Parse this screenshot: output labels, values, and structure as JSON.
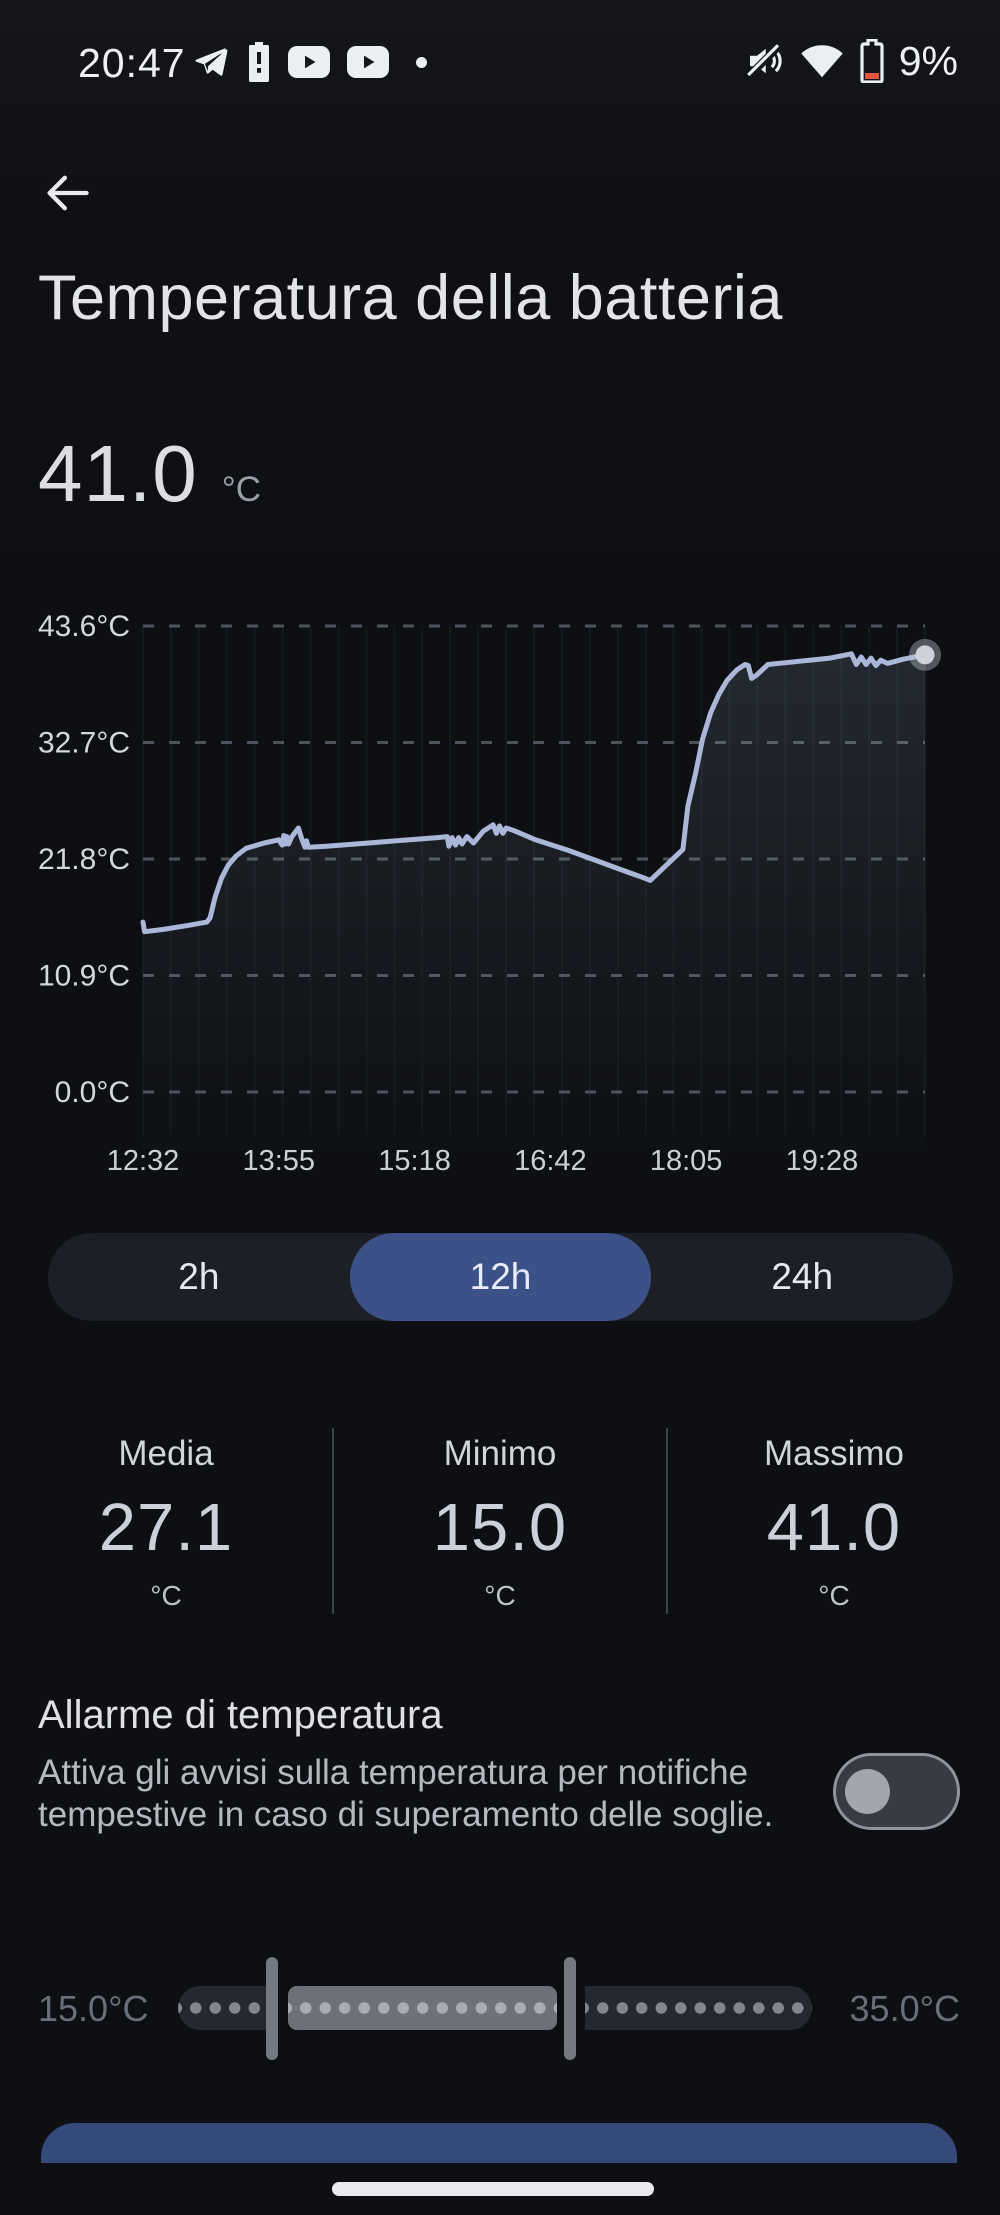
{
  "status_bar": {
    "time": "20:47",
    "battery_percent": "9%",
    "left_icons": [
      "telegram-icon",
      "battery-alert-icon",
      "youtube-icon",
      "youtube-icon",
      "notification-dot"
    ],
    "right_icons": [
      "volume-muted-icon",
      "wifi-icon",
      "battery-low-icon"
    ]
  },
  "header": {
    "title": "Temperatura della batteria"
  },
  "current": {
    "value": "41.0",
    "unit": "°C"
  },
  "chart_data": {
    "type": "line",
    "title": "Temperatura della batteria (12h)",
    "unit": "°C",
    "line_color": "#aab7d9",
    "grid_color": "#4e535b",
    "ylim": [
      0,
      43.6
    ],
    "y_ticks": [
      43.6,
      32.7,
      21.8,
      10.9,
      0.0
    ],
    "y_tick_labels": [
      "43.6°C",
      "32.7°C",
      "21.8°C",
      "10.9°C",
      "0.0°C"
    ],
    "xlim_minutes": [
      0,
      478
    ],
    "x_tick_minutes": [
      0,
      83,
      166,
      249,
      332,
      415
    ],
    "x_tick_labels": [
      "12:32",
      "13:55",
      "15:18",
      "16:42",
      "18:05",
      "19:28"
    ],
    "grid": true,
    "legend": "none",
    "points": [
      [
        0,
        15.9
      ],
      [
        1,
        15.0
      ],
      [
        12,
        15.2
      ],
      [
        28,
        15.6
      ],
      [
        39,
        15.9
      ],
      [
        41,
        16.3
      ],
      [
        44,
        18.2
      ],
      [
        48,
        20.0
      ],
      [
        52,
        21.2
      ],
      [
        57,
        22.1
      ],
      [
        63,
        22.8
      ],
      [
        74,
        23.3
      ],
      [
        83,
        23.6
      ],
      [
        85,
        23.1
      ],
      [
        86,
        24.0
      ],
      [
        87,
        23.2
      ],
      [
        88,
        23.9
      ],
      [
        89,
        23.2
      ],
      [
        91,
        23.9
      ],
      [
        95,
        24.7
      ],
      [
        97,
        23.7
      ],
      [
        99,
        22.9
      ],
      [
        100,
        23.5
      ],
      [
        101,
        22.9
      ],
      [
        112,
        23.0
      ],
      [
        130,
        23.2
      ],
      [
        155,
        23.5
      ],
      [
        180,
        23.8
      ],
      [
        186,
        23.9
      ],
      [
        187,
        23.0
      ],
      [
        189,
        23.8
      ],
      [
        191,
        23.1
      ],
      [
        193,
        23.8
      ],
      [
        195,
        23.2
      ],
      [
        198,
        23.9
      ],
      [
        202,
        23.3
      ],
      [
        208,
        24.4
      ],
      [
        214,
        25.0
      ],
      [
        216,
        24.2
      ],
      [
        218,
        24.9
      ],
      [
        220,
        24.2
      ],
      [
        222,
        24.7
      ],
      [
        226,
        24.5
      ],
      [
        240,
        23.6
      ],
      [
        260,
        22.6
      ],
      [
        285,
        21.2
      ],
      [
        305,
        20.1
      ],
      [
        310,
        19.8
      ],
      [
        330,
        22.7
      ],
      [
        331,
        24.0
      ],
      [
        333,
        26.7
      ],
      [
        338,
        30.0
      ],
      [
        342,
        33.0
      ],
      [
        347,
        35.5
      ],
      [
        352,
        37.2
      ],
      [
        357,
        38.5
      ],
      [
        363,
        39.5
      ],
      [
        368,
        40.0
      ],
      [
        370,
        39.9
      ],
      [
        372,
        38.7
      ],
      [
        375,
        39.0
      ],
      [
        382,
        40.0
      ],
      [
        395,
        40.2
      ],
      [
        420,
        40.6
      ],
      [
        433,
        41.0
      ],
      [
        436,
        40.0
      ],
      [
        439,
        40.7
      ],
      [
        442,
        40.0
      ],
      [
        445,
        40.6
      ],
      [
        448,
        39.9
      ],
      [
        451,
        40.4
      ],
      [
        455,
        40.1
      ],
      [
        465,
        40.5
      ],
      [
        478,
        40.9
      ]
    ]
  },
  "range_selector": {
    "options": [
      "2h",
      "12h",
      "24h"
    ],
    "selected": "12h",
    "selected_color": "#3c5187"
  },
  "stats": [
    {
      "label": "Media",
      "value": "27.1",
      "unit": "°C"
    },
    {
      "label": "Minimo",
      "value": "15.0",
      "unit": "°C"
    },
    {
      "label": "Massimo",
      "value": "41.0",
      "unit": "°C"
    }
  ],
  "alarm": {
    "title": "Allarme di temperatura",
    "description": "Attiva gli avvisi sulla temperatura per notifiche tempestive in caso di superamento delle soglie.",
    "toggle_on": false,
    "range": {
      "min_label": "15.0°C",
      "max_label": "35.0°C"
    }
  }
}
